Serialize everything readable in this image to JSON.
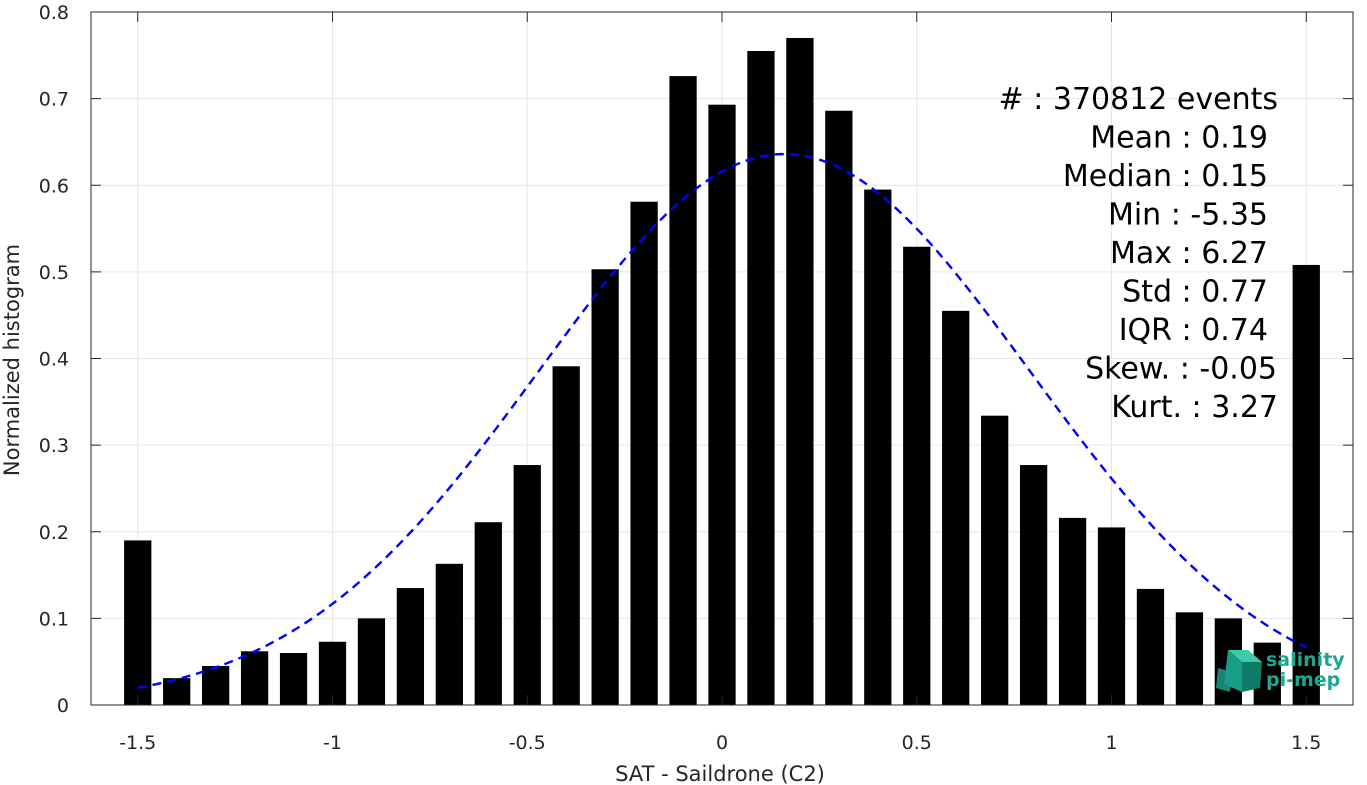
{
  "chart_data": {
    "type": "bar",
    "xlabel": "SAT - Saildrone (C2)",
    "ylabel": "Normalized histogram",
    "xlim": [
      -1.62,
      1.62
    ],
    "ylim": [
      0,
      0.8
    ],
    "xticks": [
      -1.5,
      -1,
      -0.5,
      0,
      0.5,
      1,
      1.5
    ],
    "xtick_labels": [
      "-1.5",
      "-1",
      "-0.5",
      "0",
      "0.5",
      "1",
      "1.5"
    ],
    "yticks": [
      0,
      0.1,
      0.2,
      0.3,
      0.4,
      0.5,
      0.6,
      0.7,
      0.8
    ],
    "ytick_labels": [
      "0",
      "0.1",
      "0.2",
      "0.3",
      "0.4",
      "0.5",
      "0.6",
      "0.7",
      "0.8"
    ],
    "grid": true,
    "bar_width": 0.07,
    "bars": {
      "x": [
        -1.5,
        -1.4,
        -1.3,
        -1.2,
        -1.1,
        -1.0,
        -0.9,
        -0.8,
        -0.7,
        -0.6,
        -0.5,
        -0.4,
        -0.3,
        -0.2,
        -0.1,
        0.0,
        0.1,
        0.2,
        0.3,
        0.4,
        0.5,
        0.6,
        0.7,
        0.8,
        0.9,
        1.0,
        1.1,
        1.2,
        1.3,
        1.4,
        1.5
      ],
      "values": [
        0.19,
        0.031,
        0.045,
        0.062,
        0.06,
        0.073,
        0.1,
        0.135,
        0.163,
        0.211,
        0.277,
        0.391,
        0.503,
        0.581,
        0.726,
        0.693,
        0.755,
        0.77,
        0.686,
        0.595,
        0.529,
        0.455,
        0.334,
        0.277,
        0.216,
        0.205,
        0.134,
        0.107,
        0.1,
        0.072,
        0.508
      ],
      "color": "#000000"
    },
    "fit_curve": {
      "style": "dashed",
      "color": "#0000ff",
      "mean": 0.16,
      "std": 0.63,
      "peak": 0.636,
      "x_range": [
        -1.5,
        1.5
      ]
    },
    "annotations": [
      {
        "label": "#",
        "value": ": 370812 events"
      },
      {
        "label": "Mean",
        "value": ": 0.19"
      },
      {
        "label": "Median",
        "value": ": 0.15"
      },
      {
        "label": "Min",
        "value": ": -5.35"
      },
      {
        "label": "Max",
        "value": ": 6.27"
      },
      {
        "label": "Std",
        "value": ": 0.77"
      },
      {
        "label": "IQR",
        "value": ": 0.74"
      },
      {
        "label": "Skew.",
        "value": ": -0.05"
      },
      {
        "label": "Kurt.",
        "value": ": 3.27"
      }
    ]
  },
  "logo": {
    "line1": "salinity",
    "line2": "pi-mep",
    "color": "#1aa88f"
  }
}
